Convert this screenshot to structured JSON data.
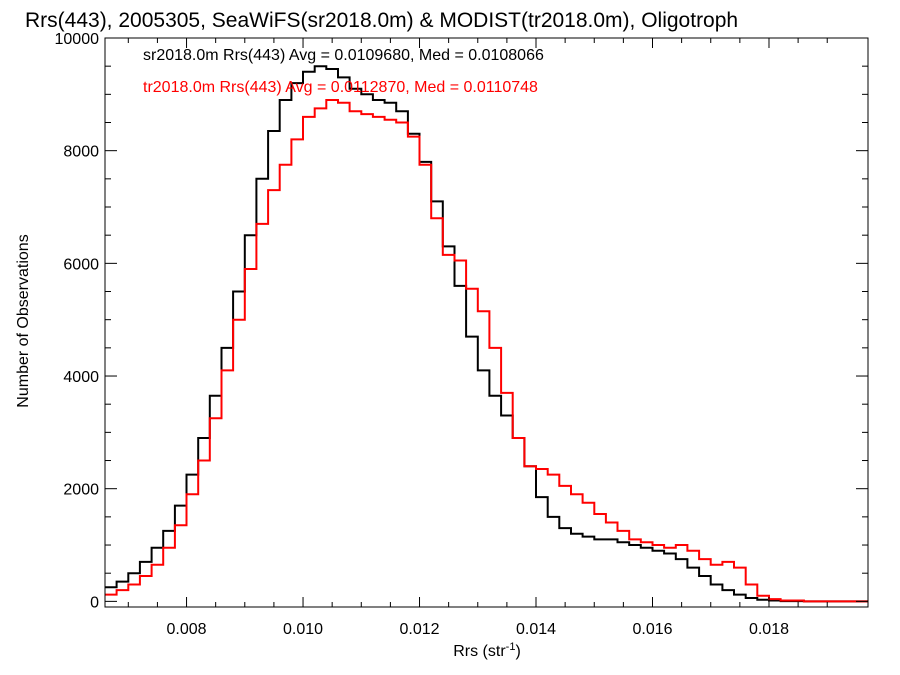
{
  "chart_data": {
    "type": "line",
    "title": "Rrs(443), 2005305, SeaWiFS(sr2018.0m) & MODIST(tr2018.0m), Oligotroph",
    "xlabel_main": "Rrs (str",
    "xlabel_sup": "-1",
    "xlabel_end": ")",
    "ylabel": "Number of Observations",
    "xlim": [
      0.0066,
      0.0197
    ],
    "ylim": [
      -100,
      10000
    ],
    "xticks": [
      0.008,
      0.01,
      0.012,
      0.014,
      0.016,
      0.018
    ],
    "xtick_labels": [
      "0.008",
      "0.010",
      "0.012",
      "0.014",
      "0.016",
      "0.018"
    ],
    "yticks": [
      0,
      2000,
      4000,
      6000,
      8000,
      10000
    ],
    "ytick_labels": [
      "0",
      "2000",
      "4000",
      "6000",
      "8000",
      "10000"
    ],
    "grid": false,
    "legend_position": "top-left",
    "legend": [
      "sr2018.0m Rrs(443) Avg = 0.0109680, Med = 0.0108066",
      "tr2018.0m Rrs(443) Avg = 0.0112870, Med = 0.0110748"
    ],
    "series": [
      {
        "color": "#000000",
        "x": [
          0.0066,
          0.0068,
          0.007,
          0.0072,
          0.0074,
          0.0076,
          0.0078,
          0.008,
          0.0082,
          0.0084,
          0.0086,
          0.0088,
          0.009,
          0.0092,
          0.0094,
          0.0096,
          0.0098,
          0.01,
          0.0102,
          0.0104,
          0.0106,
          0.0108,
          0.011,
          0.0112,
          0.0114,
          0.0116,
          0.0118,
          0.012,
          0.0122,
          0.0124,
          0.0126,
          0.0128,
          0.013,
          0.0132,
          0.0134,
          0.0136,
          0.0138,
          0.014,
          0.0142,
          0.0144,
          0.0146,
          0.0148,
          0.015,
          0.0152,
          0.0154,
          0.0156,
          0.0158,
          0.016,
          0.0162,
          0.0164,
          0.0166,
          0.0168,
          0.017,
          0.0172,
          0.0174,
          0.0176,
          0.0178,
          0.018,
          0.0182,
          0.0186,
          0.019,
          0.0197
        ],
        "y": [
          250,
          350,
          500,
          700,
          950,
          1250,
          1700,
          2250,
          2900,
          3650,
          4500,
          5500,
          6500,
          7500,
          8350,
          8900,
          9200,
          9400,
          9500,
          9450,
          9300,
          9100,
          9000,
          8900,
          8850,
          8700,
          8300,
          7800,
          7100,
          6300,
          5600,
          4700,
          4100,
          3650,
          3300,
          2900,
          2400,
          1850,
          1500,
          1300,
          1200,
          1150,
          1100,
          1100,
          1050,
          1000,
          950,
          900,
          850,
          750,
          600,
          450,
          300,
          200,
          120,
          60,
          30,
          15,
          5,
          0,
          0,
          0
        ]
      },
      {
        "color": "#ff0000",
        "x": [
          0.0066,
          0.0068,
          0.007,
          0.0072,
          0.0074,
          0.0076,
          0.0078,
          0.008,
          0.0082,
          0.0084,
          0.0086,
          0.0088,
          0.009,
          0.0092,
          0.0094,
          0.0096,
          0.0098,
          0.01,
          0.0102,
          0.0104,
          0.0106,
          0.0108,
          0.011,
          0.0112,
          0.0114,
          0.0116,
          0.0118,
          0.012,
          0.0122,
          0.0124,
          0.0126,
          0.0128,
          0.013,
          0.0132,
          0.0134,
          0.0136,
          0.0138,
          0.014,
          0.0142,
          0.0144,
          0.0146,
          0.0148,
          0.015,
          0.0152,
          0.0154,
          0.0156,
          0.0158,
          0.016,
          0.0162,
          0.0164,
          0.0166,
          0.0168,
          0.017,
          0.0172,
          0.0174,
          0.0176,
          0.0178,
          0.018,
          0.0182,
          0.0186,
          0.019,
          0.0197
        ],
        "y": [
          120,
          200,
          300,
          450,
          650,
          950,
          1350,
          1900,
          2500,
          3250,
          4100,
          5000,
          5900,
          6700,
          7300,
          7750,
          8200,
          8600,
          8750,
          8900,
          8850,
          8700,
          8650,
          8600,
          8550,
          8500,
          8250,
          7750,
          6800,
          6150,
          6050,
          5550,
          5150,
          4500,
          3700,
          2900,
          2400,
          2350,
          2250,
          2050,
          1900,
          1750,
          1550,
          1400,
          1250,
          1100,
          1050,
          1000,
          950,
          1000,
          900,
          750,
          650,
          700,
          600,
          300,
          100,
          40,
          15,
          0,
          0,
          0
        ]
      }
    ]
  }
}
